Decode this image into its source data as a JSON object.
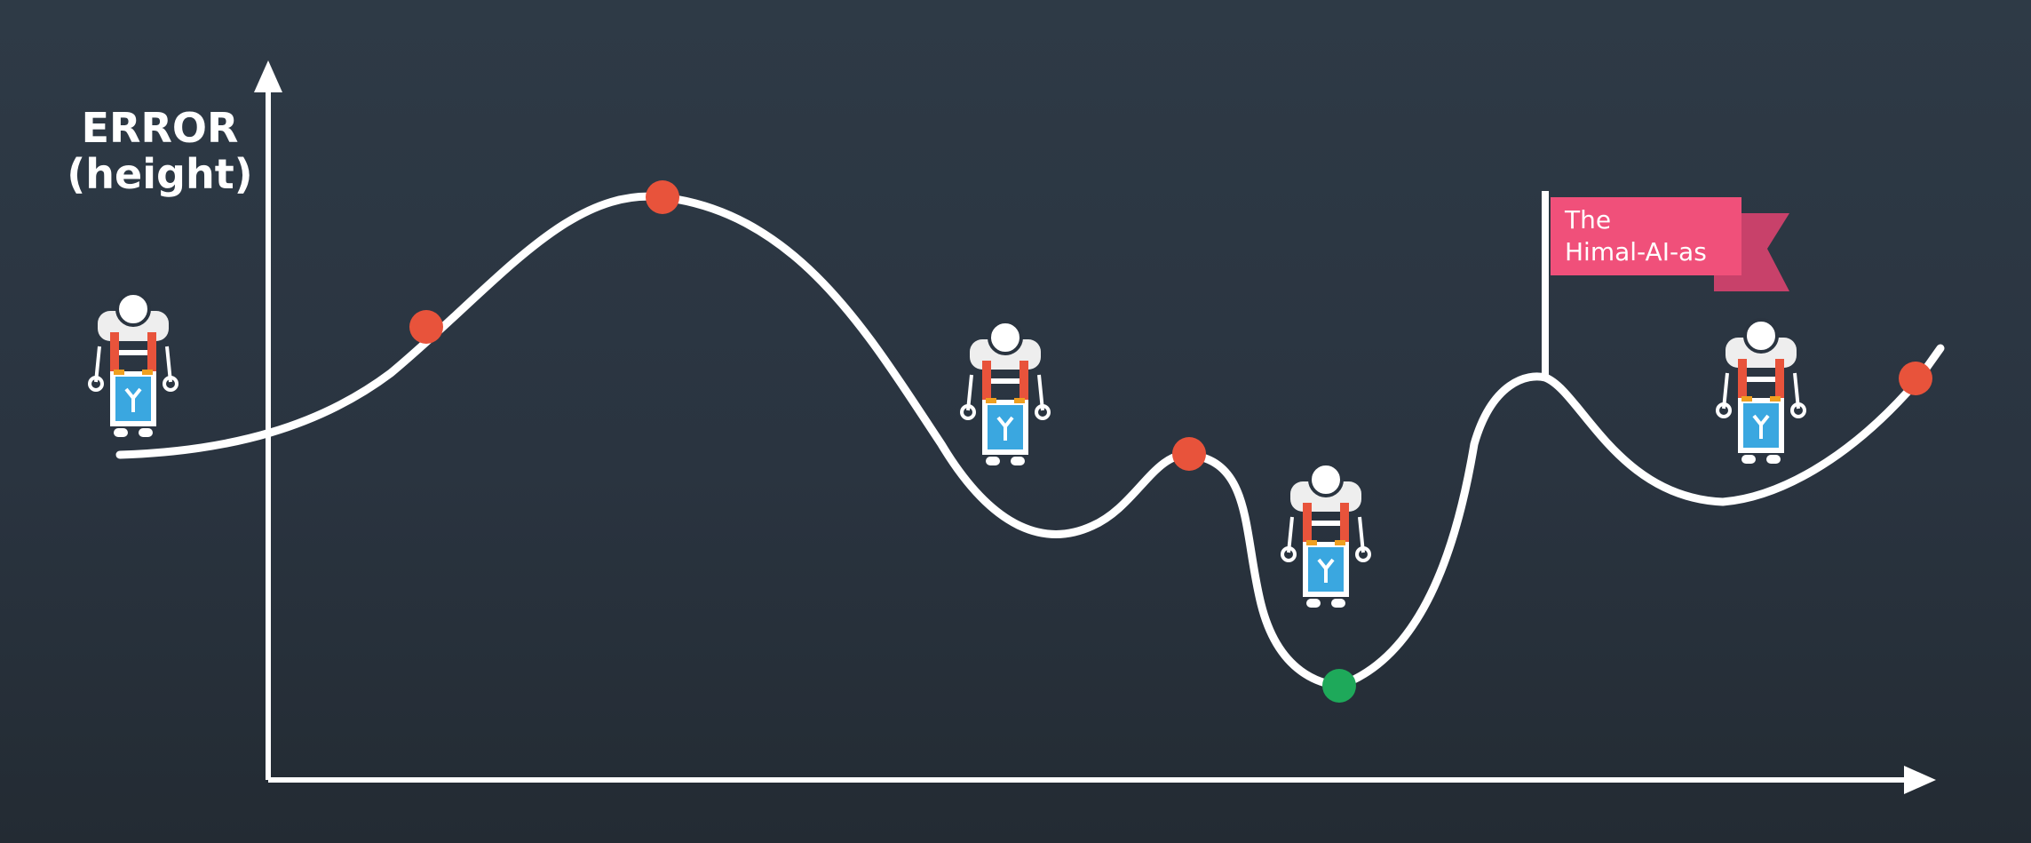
{
  "axis": {
    "y_label_line1": "ERROR",
    "y_label_line2": "(height)"
  },
  "flag": {
    "line1": "The",
    "line2": "Himal-AI-as",
    "color": "#f0507a",
    "color_dark": "#c8416a"
  },
  "colors": {
    "curve": "#ffffff",
    "axis": "#ffffff",
    "point_red": "#e8533b",
    "point_green": "#1ea95a",
    "robot_blue": "#3aa7e0",
    "robot_red": "#e8533b",
    "robot_orange": "#f0a020"
  },
  "points": [
    {
      "name": "red-point",
      "kind": "red"
    },
    {
      "name": "red-point",
      "kind": "red"
    },
    {
      "name": "red-point",
      "kind": "red"
    },
    {
      "name": "green-minimum-point",
      "kind": "green"
    },
    {
      "name": "red-point",
      "kind": "red"
    }
  ],
  "robots": [
    {
      "name": "robot-icon"
    },
    {
      "name": "robot-icon"
    },
    {
      "name": "robot-icon"
    },
    {
      "name": "robot-icon"
    }
  ]
}
